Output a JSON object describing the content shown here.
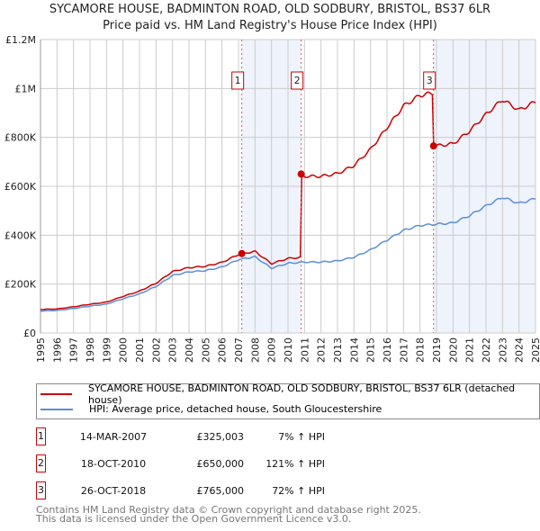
{
  "chart_data": {
    "type": "line",
    "title": "SYCAMORE HOUSE, BADMINTON ROAD, OLD SODBURY, BRISTOL, BS37 6LR",
    "subtitle": "Price paid vs. HM Land Registry's House Price Index (HPI)",
    "xlim": [
      1995,
      2025
    ],
    "ylim": [
      0,
      1200000
    ],
    "x_ticks": [
      "1995",
      "1996",
      "1997",
      "1998",
      "1999",
      "2000",
      "2001",
      "2002",
      "2003",
      "2004",
      "2005",
      "2006",
      "2007",
      "2008",
      "2009",
      "2010",
      "2011",
      "2012",
      "2013",
      "2014",
      "2015",
      "2016",
      "2017",
      "2018",
      "2019",
      "2020",
      "2021",
      "2022",
      "2023",
      "2024",
      "2025"
    ],
    "y_ticks": [
      {
        "v": 0,
        "l": "£0"
      },
      {
        "v": 200000,
        "l": "£200K"
      },
      {
        "v": 400000,
        "l": "£400K"
      },
      {
        "v": 600000,
        "l": "£600K"
      },
      {
        "v": 800000,
        "l": "£800K"
      },
      {
        "v": 1000000,
        "l": "£1M"
      },
      {
        "v": 1200000,
        "l": "£1.2M"
      }
    ],
    "hpi_years": [
      1995,
      1996,
      1997,
      1998,
      1999,
      2000,
      2001,
      2002,
      2003,
      2004,
      2005,
      2006,
      2007,
      2008,
      2009,
      2010,
      2011,
      2012,
      2013,
      2014,
      2015,
      2016,
      2017,
      2018,
      2019,
      2020,
      2021,
      2022,
      2023,
      2024,
      2025
    ],
    "hpi_values": [
      90000,
      92000,
      100000,
      110000,
      118000,
      140000,
      160000,
      190000,
      235000,
      250000,
      255000,
      270000,
      300000,
      312000,
      265000,
      285000,
      290000,
      290000,
      295000,
      310000,
      340000,
      380000,
      420000,
      440000,
      445000,
      450000,
      480000,
      520000,
      555000,
      530000,
      550000
    ],
    "series": [
      {
        "name": "SYCAMORE HOUSE, BADMINTON ROAD, OLD SODBURY, BRISTOL, BS37 6LR (detached house)",
        "color": "#cc0000"
      },
      {
        "name": "HPI: Average price, detached house, South Gloucestershire",
        "color": "#5b8fd6"
      }
    ],
    "sales": [
      {
        "n": "1",
        "date": "14-MAR-2007",
        "x": 2007.2,
        "price": "£325,003",
        "value": 325003,
        "hpi": "7% ↑ HPI",
        "ratio": 1.07
      },
      {
        "n": "2",
        "date": "18-OCT-2010",
        "x": 2010.8,
        "price": "£650,000",
        "value": 650000,
        "hpi": "121% ↑ HPI",
        "ratio": 2.21
      },
      {
        "n": "3",
        "date": "26-OCT-2018",
        "x": 2018.82,
        "price": "£765,000",
        "value": 765000,
        "hpi": "72% ↑ HPI",
        "ratio": 1.72
      }
    ]
  },
  "footer": {
    "line1": "Contains HM Land Registry data © Crown copyright and database right 2025.",
    "line2": "This data is licensed under the Open Government Licence v3.0."
  }
}
